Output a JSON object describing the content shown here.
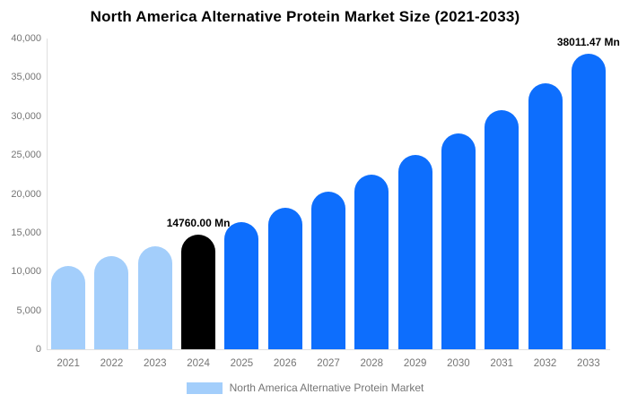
{
  "title": "North America Alternative Protein Market Size (2021-2033)",
  "legend": {
    "label": "North America Alternative Protein Market",
    "swatch_color": "#a3cefb"
  },
  "chart_data": {
    "type": "bar",
    "title": "North America Alternative Protein Market Size (2021-2033)",
    "unit": "Mn",
    "categories": [
      "2021",
      "2022",
      "2023",
      "2024",
      "2025",
      "2026",
      "2027",
      "2028",
      "2029",
      "2030",
      "2031",
      "2032",
      "2033"
    ],
    "values": [
      10766,
      11960,
      13286,
      14760,
      16396,
      18213,
      20232,
      22475,
      24966,
      27733,
      30807,
      34222,
      38011.47
    ],
    "bar_colors": [
      "#a3cefb",
      "#a3cefb",
      "#a3cefb",
      "#000000",
      "#0d6efd",
      "#0d6efd",
      "#0d6efd",
      "#0d6efd",
      "#0d6efd",
      "#0d6efd",
      "#0d6efd",
      "#0d6efd",
      "#0d6efd"
    ],
    "labeled_points": [
      {
        "category": "2024",
        "label": "14760.00 Mn"
      },
      {
        "category": "2033",
        "label": "38011.47 Mn"
      }
    ],
    "ylim": [
      0,
      40000
    ],
    "ytick_values": [
      0,
      5000,
      10000,
      15000,
      20000,
      25000,
      30000,
      35000,
      40000
    ],
    "ytick_labels": [
      "0",
      "5,000",
      "10,000",
      "15,000",
      "20,000",
      "25,000",
      "30,000",
      "35,000",
      "40,000"
    ],
    "grid": false,
    "legend_position": "bottom",
    "legend_entries": [
      "North America Alternative Protein Market"
    ]
  },
  "colors": {
    "axis_line": "#e0e0e0",
    "tick_text": "#757575",
    "annotation_text": "#000000"
  }
}
